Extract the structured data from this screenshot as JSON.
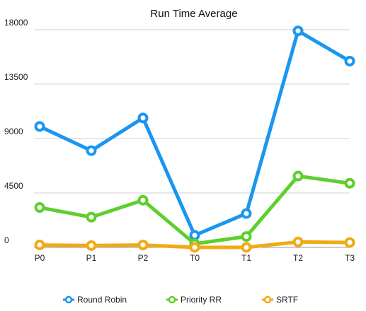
{
  "chart_data": {
    "type": "line",
    "title": "Run Time Average",
    "xlabel": "",
    "ylabel": "",
    "categories": [
      "P0",
      "P1",
      "P2",
      "T0",
      "T1",
      "T2",
      "T3"
    ],
    "ylim": [
      0,
      18000
    ],
    "yticks": [
      "0",
      "4500",
      "9000",
      "13500",
      "18000"
    ],
    "grid": true,
    "legend_position": "bottom",
    "series": [
      {
        "name": "Round Robin",
        "color": "#1a96f0",
        "values": [
          10000,
          8000,
          10700,
          1000,
          2800,
          17900,
          15400
        ]
      },
      {
        "name": "Priority RR",
        "color": "#5ecf2d",
        "values": [
          3300,
          2500,
          3900,
          300,
          900,
          5900,
          5300
        ]
      },
      {
        "name": "SRTF",
        "color": "#f0aa14",
        "values": [
          200,
          150,
          200,
          0,
          0,
          450,
          400
        ]
      }
    ]
  }
}
